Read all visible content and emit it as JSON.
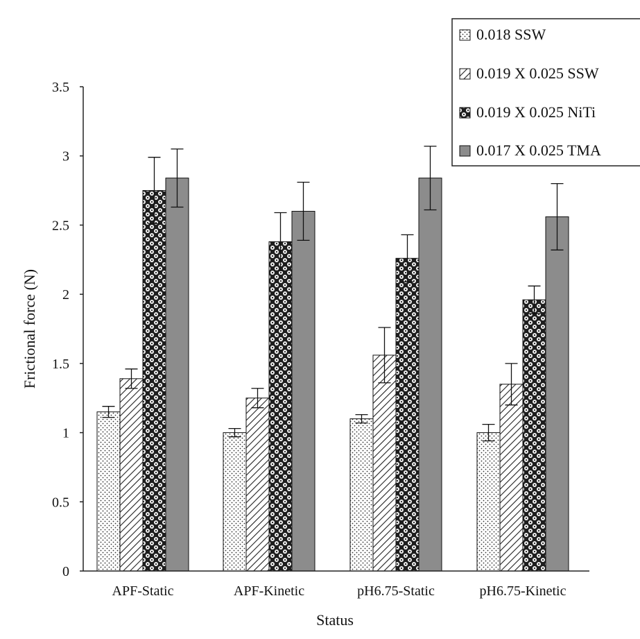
{
  "chart_data": {
    "type": "bar",
    "title": "",
    "xlabel": "Status",
    "ylabel": "Frictional force (N)",
    "ylim": [
      0,
      3.5
    ],
    "yticks": [
      0,
      0.5,
      1,
      1.5,
      2,
      2.5,
      3,
      3.5
    ],
    "ytick_labels": [
      "0",
      "0.5",
      "1",
      "1.5",
      "2",
      "2.5",
      "3",
      "3.5"
    ],
    "categories": [
      "APF-Static",
      "APF-Kinetic",
      "pH6.75-Static",
      "pH6.75-Kinetic"
    ],
    "legend_position": "top-right",
    "series": [
      {
        "name": "0.018 SSW",
        "pattern": "dots",
        "values": [
          1.15,
          1.0,
          1.1,
          1.0
        ],
        "errors": [
          0.04,
          0.03,
          0.03,
          0.06
        ]
      },
      {
        "name": "0.019 X 0.025 SSW",
        "pattern": "diagonal-hatch",
        "values": [
          1.39,
          1.25,
          1.56,
          1.35
        ],
        "errors": [
          0.07,
          0.07,
          0.2,
          0.15
        ]
      },
      {
        "name": "0.019 X 0.025 NiTi",
        "pattern": "checker-circles",
        "values": [
          2.75,
          2.38,
          2.26,
          1.96
        ],
        "errors": [
          0.24,
          0.21,
          0.17,
          0.1
        ]
      },
      {
        "name": "0.017 X 0.025 TMA",
        "pattern": "solid-gray",
        "values": [
          2.84,
          2.6,
          2.84,
          2.56
        ],
        "errors": [
          0.21,
          0.21,
          0.23,
          0.24
        ]
      }
    ]
  },
  "colors": {
    "axis": "#222222",
    "tma_fill": "#8c8c8c",
    "niti_fill": "#1e1e1e",
    "bar_outline": "#111111"
  }
}
